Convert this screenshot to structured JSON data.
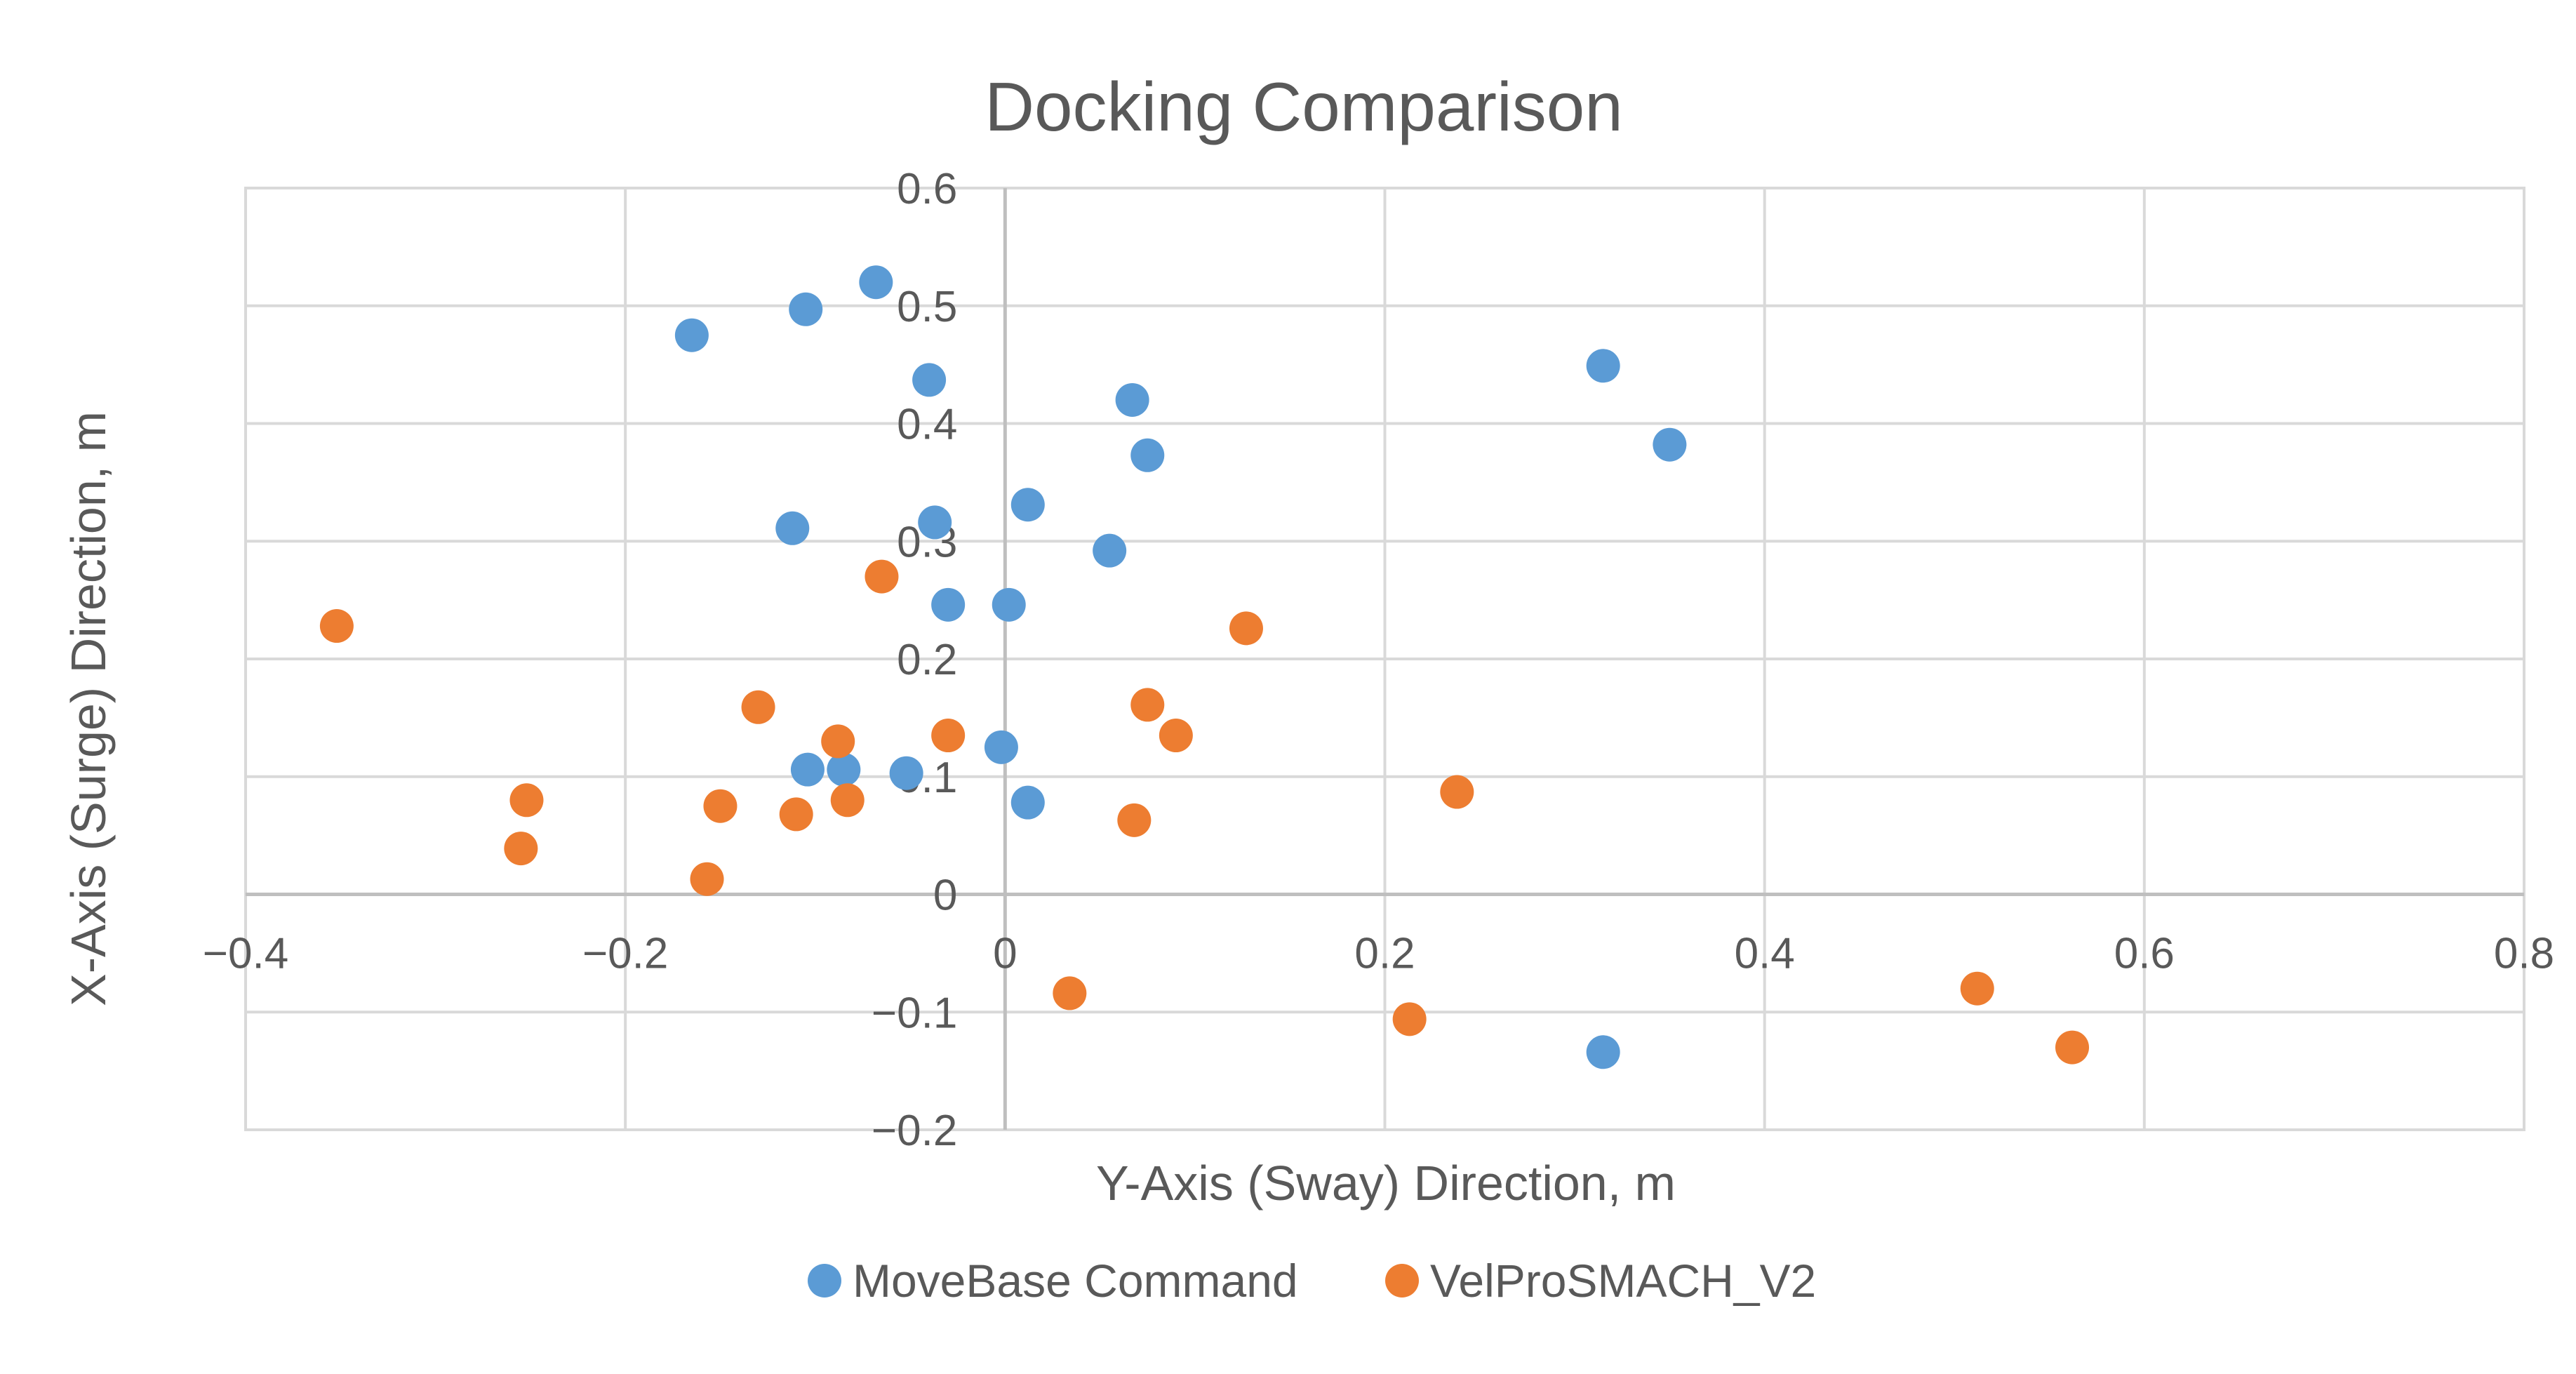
{
  "chart_data": {
    "type": "scatter",
    "title": "Docking Comparison",
    "xlabel": "Y-Axis (Sway) Direction, m",
    "ylabel": "X-Axis (Surge) Direction, m",
    "xlim": [
      -0.4,
      0.8
    ],
    "ylim": [
      -0.2,
      0.6
    ],
    "xticks": [
      -0.4,
      -0.2,
      0,
      0.2,
      0.4,
      0.6,
      0.8
    ],
    "yticks": [
      -0.2,
      -0.1,
      0,
      0.1,
      0.2,
      0.3,
      0.4,
      0.5,
      0.6
    ],
    "xtick_labels": [
      "−0.4",
      "−0.2",
      "0",
      "0.2",
      "0.4",
      "0.6",
      "0.8"
    ],
    "ytick_labels": [
      "−0.2",
      "−0.1",
      "0",
      "0.1",
      "0.2",
      "0.3",
      "0.4",
      "0.5",
      "0.6"
    ],
    "grid": true,
    "legend_position": "bottom",
    "series": [
      {
        "name": "MoveBase Command",
        "color": "#5b9bd5",
        "points": [
          [
            -0.165,
            0.475
          ],
          [
            -0.105,
            0.497
          ],
          [
            -0.068,
            0.52
          ],
          [
            -0.04,
            0.437
          ],
          [
            0.067,
            0.42
          ],
          [
            0.075,
            0.373
          ],
          [
            0.315,
            0.449
          ],
          [
            0.35,
            0.382
          ],
          [
            -0.112,
            0.311
          ],
          [
            -0.037,
            0.316
          ],
          [
            0.012,
            0.331
          ],
          [
            0.055,
            0.292
          ],
          [
            -0.03,
            0.246
          ],
          [
            0.002,
            0.246
          ],
          [
            -0.104,
            0.106
          ],
          [
            -0.085,
            0.106
          ],
          [
            -0.052,
            0.103
          ],
          [
            -0.002,
            0.125
          ],
          [
            0.012,
            0.078
          ],
          [
            0.315,
            -0.134
          ]
        ]
      },
      {
        "name": "VelProSMACH_V2",
        "color": "#ed7d31",
        "points": [
          [
            -0.352,
            0.228
          ],
          [
            -0.065,
            0.27
          ],
          [
            0.127,
            0.226
          ],
          [
            -0.13,
            0.159
          ],
          [
            -0.088,
            0.13
          ],
          [
            -0.03,
            0.135
          ],
          [
            0.075,
            0.161
          ],
          [
            0.09,
            0.135
          ],
          [
            -0.252,
            0.08
          ],
          [
            -0.15,
            0.075
          ],
          [
            -0.11,
            0.068
          ],
          [
            -0.083,
            0.08
          ],
          [
            0.068,
            0.063
          ],
          [
            0.238,
            0.087
          ],
          [
            -0.255,
            0.039
          ],
          [
            -0.157,
            0.013
          ],
          [
            0.034,
            -0.084
          ],
          [
            0.213,
            -0.106
          ],
          [
            0.512,
            -0.08
          ],
          [
            0.562,
            -0.13
          ]
        ]
      }
    ]
  }
}
